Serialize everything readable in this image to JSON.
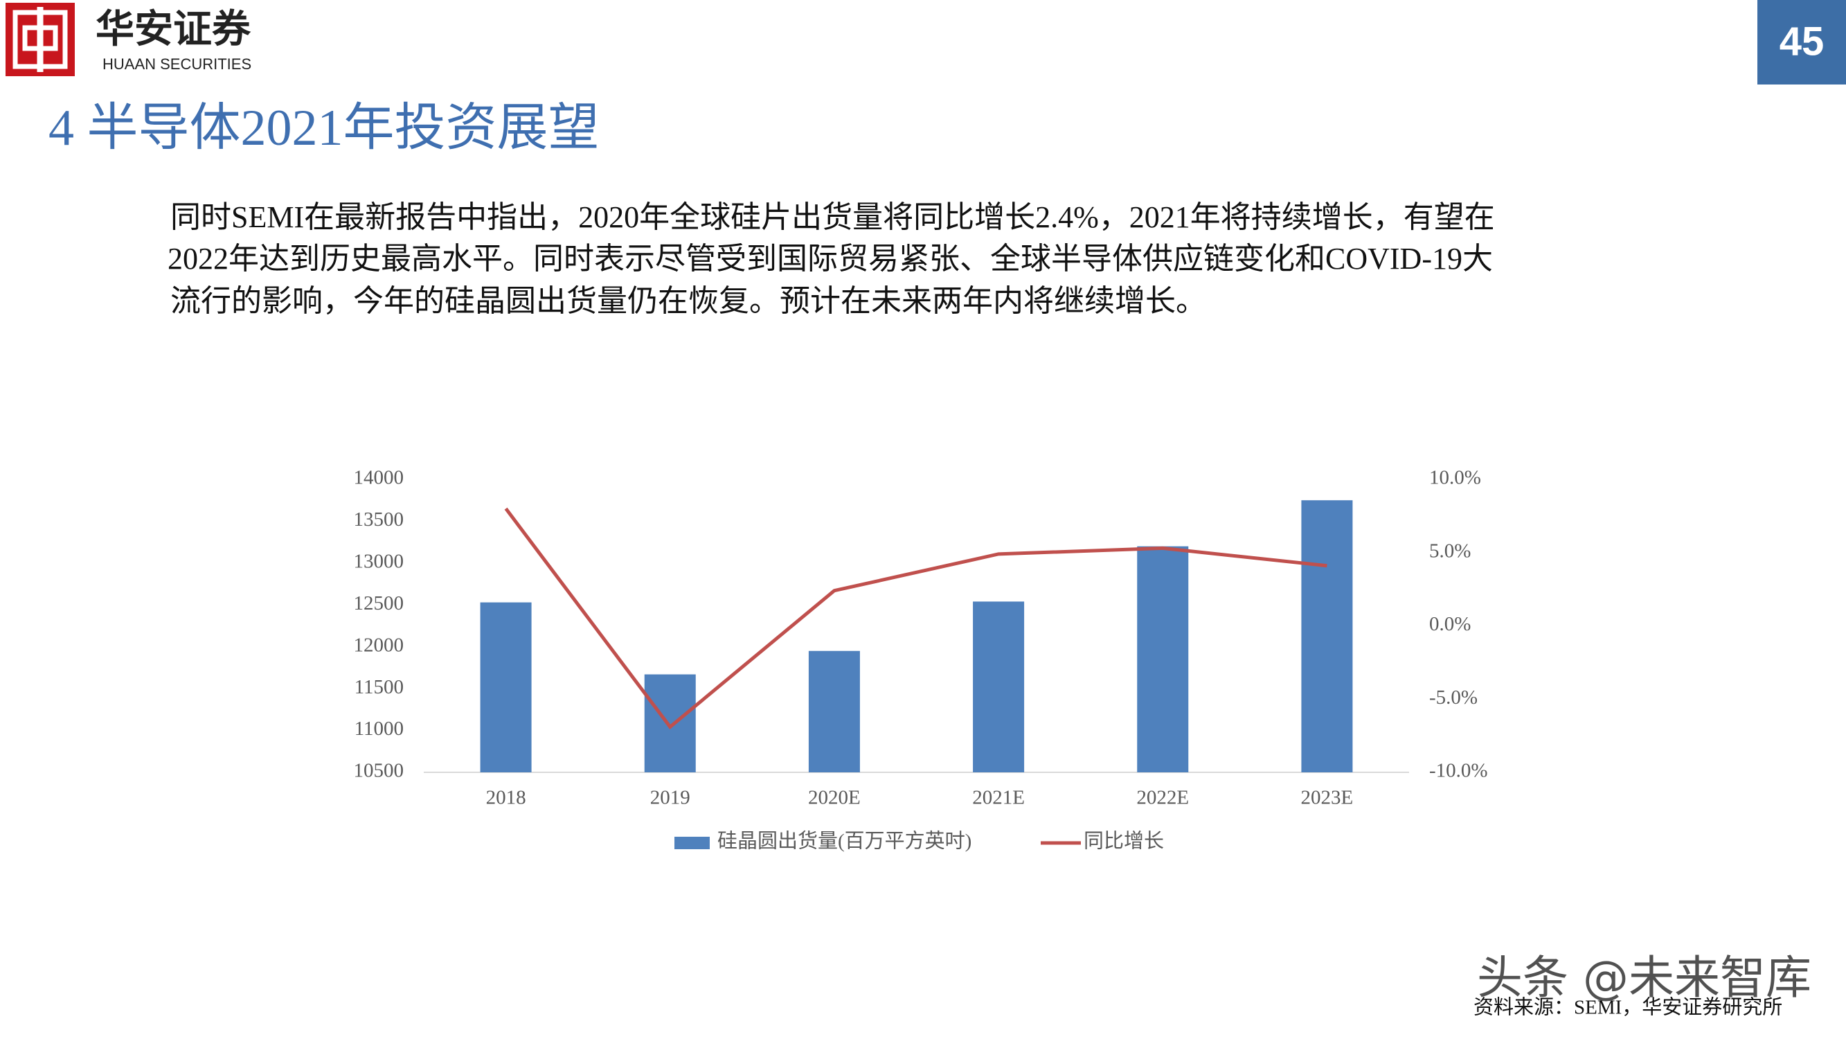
{
  "header": {
    "logo_text": "华安证券",
    "logo_subtext": "HUAAN SECURITIES",
    "page_number": "45",
    "title": "4 半导体2021年投资展望"
  },
  "body": {
    "lines": [
      "同时SEMI在最新报告中指出，2020年全球硅片出货量将同比增长2.4%，2021年将持续增长，有望在",
      "2022年达到历史最高水平。同时表示尽管受到国际贸易紧张、全球半导体供应链变化和COVID-19大",
      "流行的影响，今年的硅晶圆出货量仍在恢复。预计在未来两年内将继续增长。"
    ]
  },
  "chart_data": {
    "type": "bar",
    "categories": [
      "2018",
      "2019",
      "2020E",
      "2021E",
      "2022E",
      "2023E"
    ],
    "series": [
      {
        "name": "硅晶圆出货量(百万平方英吋)",
        "type": "bar",
        "color": "#4f81bd",
        "values": [
          12530,
          11670,
          11950,
          12540,
          13200,
          13750
        ]
      },
      {
        "name": "同比增长",
        "type": "line",
        "axis": "y2",
        "color": "#c0504d",
        "values": [
          8.0,
          -6.9,
          2.4,
          4.9,
          5.3,
          4.1
        ]
      }
    ],
    "ylim": [
      10500,
      14000
    ],
    "yticks": [
      10500,
      11000,
      11500,
      12000,
      12500,
      13000,
      13500,
      14000
    ],
    "y2lim": [
      -10,
      10
    ],
    "y2ticks": [
      {
        "value": -10,
        "label": "-10.0%"
      },
      {
        "value": -5,
        "label": "-5.0%"
      },
      {
        "value": 0,
        "label": "0.0%"
      },
      {
        "value": 5,
        "label": "5.0%"
      },
      {
        "value": 10,
        "label": "10.0%"
      }
    ],
    "grid": false,
    "legend": "bottom"
  },
  "footer": {
    "source": "资料来源：SEMI，华安证券研究所",
    "watermark": "头条 @未来智库"
  }
}
